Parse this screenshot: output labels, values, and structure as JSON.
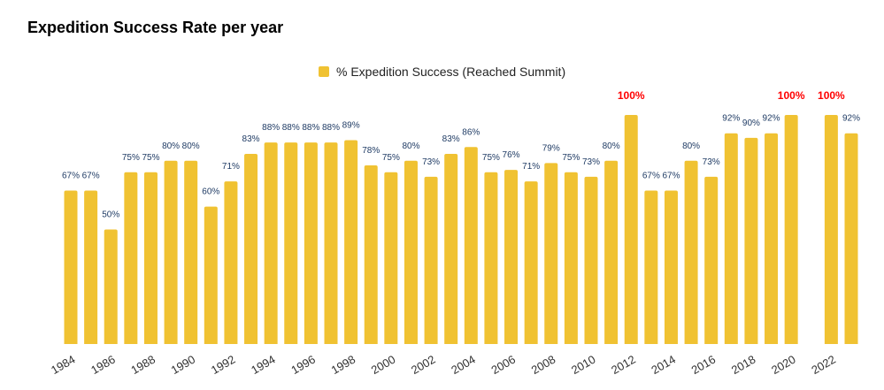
{
  "chart_data": {
    "type": "bar",
    "title": "Expedition Success Rate per year",
    "xlabel": "",
    "ylabel": "",
    "ylim": [
      0,
      100
    ],
    "grid": false,
    "legend_position": "top",
    "categories": [
      "1984",
      "1985",
      "1986",
      "1987",
      "1988",
      "1989",
      "1990",
      "1991",
      "1992",
      "1993",
      "1994",
      "1995",
      "1996",
      "1997",
      "1998",
      "1999",
      "2000",
      "2001",
      "2002",
      "2003",
      "2004",
      "2005",
      "2006",
      "2007",
      "2008",
      "2009",
      "2010",
      "2011",
      "2012",
      "2013",
      "2014",
      "2015",
      "2016",
      "2017",
      "2018",
      "2019",
      "2020",
      "2021",
      "2022",
      "2023"
    ],
    "tick_labels": [
      "1984",
      "1986",
      "1988",
      "1990",
      "1992",
      "1994",
      "1996",
      "1998",
      "2000",
      "2002",
      "2004",
      "2006",
      "2008",
      "2010",
      "2012",
      "2014",
      "2016",
      "2018",
      "2020",
      "2022"
    ],
    "series": [
      {
        "name": "% Expedition Success (Reached Summit)",
        "values": [
          67,
          67,
          50,
          75,
          75,
          80,
          80,
          60,
          71,
          83,
          88,
          88,
          88,
          88,
          89,
          78,
          75,
          80,
          73,
          83,
          86,
          75,
          76,
          71,
          79,
          75,
          73,
          80,
          100,
          67,
          67,
          80,
          73,
          92,
          90,
          92,
          100,
          null,
          100,
          92
        ]
      }
    ],
    "colors": {
      "bar": "#F0C232",
      "label": "#1F3B64",
      "highlight_label": "#FF0000",
      "tick": "#333333"
    }
  }
}
